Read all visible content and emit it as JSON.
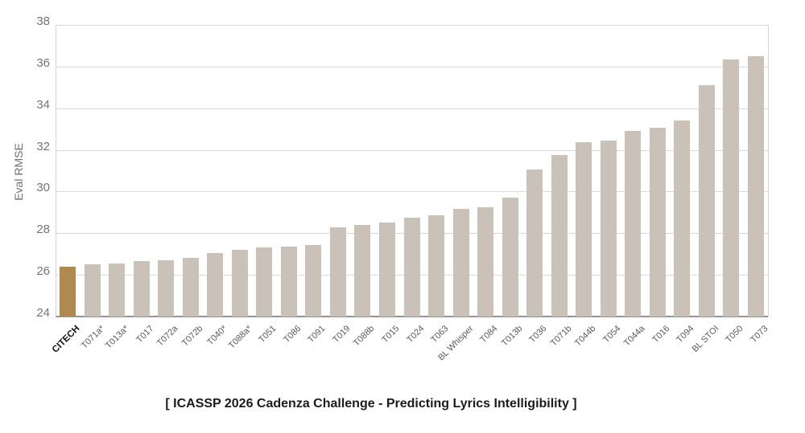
{
  "page": {
    "background": "#ffffff"
  },
  "chart_data": {
    "type": "bar",
    "title": "",
    "ylabel": "Eval RMSE",
    "xlabel": "",
    "caption": "[ ICASSP 2026 Cadenza Challenge - Predicting Lyrics Intelligibility ]",
    "ylim": [
      24,
      38
    ],
    "yticks": [
      24,
      26,
      28,
      30,
      32,
      34,
      36,
      38
    ],
    "grid": true,
    "legend": "none",
    "categories": [
      "CITECH",
      "T071a*",
      "T013a*",
      "T017",
      "T072a",
      "T072b",
      "T040*",
      "T088a*",
      "T051",
      "T086",
      "T091",
      "T019",
      "T088b",
      "T015",
      "T024",
      "T063",
      "BL Whisper",
      "T084",
      "T013b",
      "T036",
      "T071b",
      "T044b",
      "T054",
      "T044a",
      "T016",
      "T094",
      "BL STOI",
      "T050",
      "T073"
    ],
    "values": [
      26.4,
      26.5,
      26.55,
      26.65,
      26.7,
      26.8,
      27.05,
      27.2,
      27.3,
      27.35,
      27.45,
      28.3,
      28.4,
      28.5,
      28.75,
      28.85,
      29.15,
      29.25,
      29.7,
      31.05,
      31.75,
      32.35,
      32.45,
      32.9,
      33.05,
      33.4,
      35.1,
      36.35,
      36.5
    ],
    "highlight_index": 0,
    "colors": {
      "bar": "#cac2b9",
      "highlight_bar": "#b1894f",
      "gridline": "#d9d9d9",
      "axis_line": "#949494",
      "plot_border": "#d4d4d4",
      "ytick_label": "#747474",
      "xtick_label": "#5a5a5a",
      "highlight_label": "#111111"
    }
  }
}
